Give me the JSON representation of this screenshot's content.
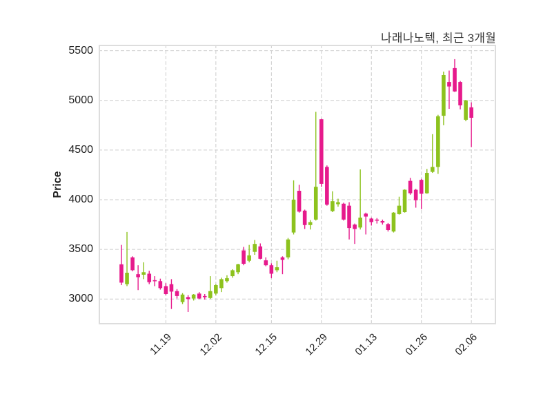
{
  "title": "나래나노텍, 최근 3개월",
  "chart_data": {
    "type": "candlestick",
    "title": "나래나노텍, 최근 3개월",
    "stock_name": "나래나노텍",
    "period": "최근 3개월",
    "ylabel": "Price",
    "grid": true,
    "y_ticks": [
      3000,
      3500,
      4000,
      4500,
      5000,
      5500
    ],
    "ylim": [
      2745,
      5560
    ],
    "x_tick_labels": [
      "11.19",
      "12.02",
      "12.15",
      "12.29",
      "01.13",
      "01.26",
      "02.06"
    ],
    "x_tick_indices": [
      8,
      17,
      27,
      36,
      45,
      54,
      63
    ],
    "colors": {
      "up": "#8dc21e",
      "down": "#e61a8c",
      "grid": "#cccccc",
      "border": "#dddddd",
      "text": "#222222",
      "title": "#3a3a3a"
    },
    "ohlc_format": [
      "open",
      "high",
      "low",
      "close"
    ],
    "candles": [
      [
        3350,
        3545,
        3140,
        3165
      ],
      [
        3150,
        3675,
        3130,
        3265
      ],
      [
        3420,
        3430,
        3280,
        3290
      ],
      [
        3250,
        3340,
        3090,
        3220
      ],
      [
        3245,
        3370,
        3200,
        3270
      ],
      [
        3255,
        3285,
        3150,
        3170
      ],
      [
        3190,
        3230,
        3130,
        3180
      ],
      [
        3180,
        3205,
        3095,
        3110
      ],
      [
        3130,
        3160,
        3040,
        3050
      ],
      [
        3150,
        3200,
        2900,
        3075
      ],
      [
        3080,
        3100,
        3005,
        3030
      ],
      [
        2970,
        3060,
        2950,
        3045
      ],
      [
        3020,
        3040,
        2870,
        3000
      ],
      [
        3005,
        3050,
        2985,
        3045
      ],
      [
        3055,
        3070,
        3000,
        3005
      ],
      [
        3030,
        3050,
        2995,
        3020
      ],
      [
        3010,
        3230,
        3000,
        3080
      ],
      [
        3055,
        3150,
        3040,
        3140
      ],
      [
        3110,
        3215,
        3070,
        3200
      ],
      [
        3180,
        3240,
        3165,
        3210
      ],
      [
        3230,
        3300,
        3215,
        3290
      ],
      [
        3270,
        3355,
        3250,
        3350
      ],
      [
        3490,
        3525,
        3340,
        3355
      ],
      [
        3385,
        3545,
        3370,
        3440
      ],
      [
        3475,
        3595,
        3445,
        3555
      ],
      [
        3530,
        3560,
        3400,
        3405
      ],
      [
        3390,
        3420,
        3330,
        3340
      ],
      [
        3340,
        3360,
        3210,
        3255
      ],
      [
        3290,
        3385,
        3270,
        3320
      ],
      [
        3420,
        3430,
        3250,
        3395
      ],
      [
        3420,
        3615,
        3400,
        3600
      ],
      [
        3670,
        4195,
        3650,
        4000
      ],
      [
        4090,
        4150,
        3870,
        3880
      ],
      [
        3890,
        3900,
        3705,
        3745
      ],
      [
        3745,
        3795,
        3700,
        3775
      ],
      [
        3800,
        4885,
        3790,
        4130
      ],
      [
        4810,
        4815,
        4130,
        4160
      ],
      [
        4330,
        4345,
        3940,
        3950
      ],
      [
        3885,
        4085,
        3875,
        3985
      ],
      [
        3955,
        4010,
        3930,
        3975
      ],
      [
        3960,
        3970,
        3790,
        3800
      ],
      [
        3940,
        3975,
        3600,
        3715
      ],
      [
        3750,
        3760,
        3555,
        3705
      ],
      [
        3720,
        4305,
        3700,
        3820
      ],
      [
        3860,
        3870,
        3650,
        3830
      ],
      [
        3810,
        3820,
        3740,
        3775
      ],
      [
        3800,
        3815,
        3760,
        3790
      ],
      [
        3785,
        3800,
        3750,
        3770
      ],
      [
        3755,
        3765,
        3680,
        3695
      ],
      [
        3680,
        3875,
        3670,
        3870
      ],
      [
        3855,
        4030,
        3850,
        3940
      ],
      [
        3875,
        4105,
        3870,
        4100
      ],
      [
        4190,
        4220,
        4050,
        4065
      ],
      [
        4100,
        4110,
        3920,
        3995
      ],
      [
        4200,
        4210,
        3905,
        4060
      ],
      [
        4065,
        4310,
        4060,
        4270
      ],
      [
        4280,
        4660,
        4270,
        4330
      ],
      [
        4330,
        4855,
        4260,
        4840
      ],
      [
        4845,
        5290,
        4750,
        5255
      ],
      [
        5185,
        5300,
        4915,
        5140
      ],
      [
        5325,
        5415,
        5085,
        5090
      ],
      [
        5185,
        5195,
        4910,
        4950
      ],
      [
        4805,
        5005,
        4790,
        5000
      ],
      [
        4930,
        4980,
        4530,
        4825
      ]
    ]
  }
}
